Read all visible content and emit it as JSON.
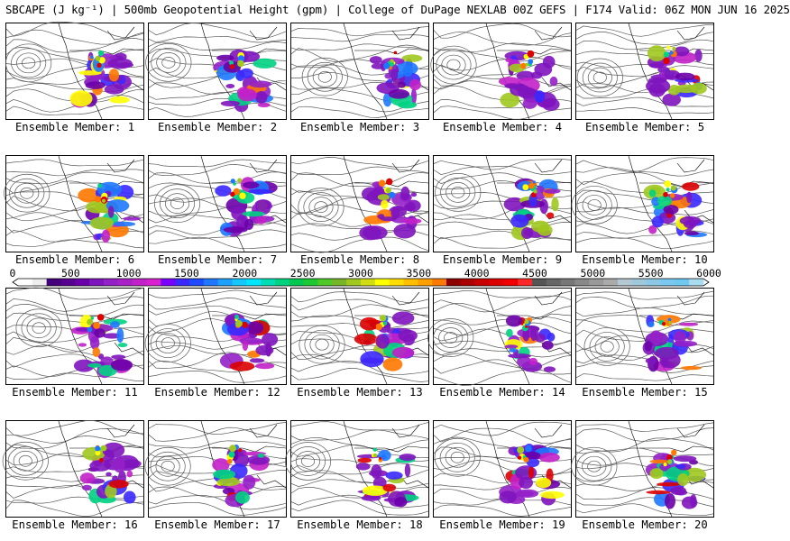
{
  "header": {
    "title": "SBCAPE (J kg⁻¹) | 500mb Geopotential Height (gpm) | College of DuPage NEXLAB 00Z GEFS | F174 Valid: 06Z MON JUN 16 2025"
  },
  "members": [
    {
      "label": "Ensemble Member: 1"
    },
    {
      "label": "Ensemble Member: 2"
    },
    {
      "label": "Ensemble Member: 3"
    },
    {
      "label": "Ensemble Member: 4"
    },
    {
      "label": "Ensemble Member: 5"
    },
    {
      "label": "Ensemble Member: 6"
    },
    {
      "label": "Ensemble Member: 7"
    },
    {
      "label": "Ensemble Member: 8"
    },
    {
      "label": "Ensemble Member: 9"
    },
    {
      "label": "Ensemble Member: 10"
    },
    {
      "label": "Ensemble Member: 11"
    },
    {
      "label": "Ensemble Member: 12"
    },
    {
      "label": "Ensemble Member: 13"
    },
    {
      "label": "Ensemble Member: 14"
    },
    {
      "label": "Ensemble Member: 15"
    },
    {
      "label": "Ensemble Member: 16"
    },
    {
      "label": "Ensemble Member: 17"
    },
    {
      "label": "Ensemble Member: 18"
    },
    {
      "label": "Ensemble Member: 19"
    },
    {
      "label": "Ensemble Member: 20"
    }
  ],
  "colorbar": {
    "ticks": [
      "0",
      "500",
      "1000",
      "1500",
      "2000",
      "2500",
      "3000",
      "3500",
      "4000",
      "4500",
      "5000",
      "5500",
      "6000"
    ],
    "min": 0,
    "max": 6000,
    "colors": [
      "#ffffff",
      "#eeeeee",
      "#44007a",
      "#560090",
      "#6a00a8",
      "#7e14be",
      "#9420c8",
      "#aa20c8",
      "#c220c8",
      "#d820d0",
      "#7a00ff",
      "#3a28ff",
      "#1e4bff",
      "#1e78ff",
      "#1ea0ff",
      "#14c8ff",
      "#00e6ff",
      "#00dcb4",
      "#00d282",
      "#00c850",
      "#1ec832",
      "#50c828",
      "#78b428",
      "#a0c81e",
      "#d2dc14",
      "#ffff00",
      "#ffdc00",
      "#ffbe00",
      "#ffa000",
      "#ff7800",
      "#8c0000",
      "#aa0000",
      "#c80000",
      "#dc0000",
      "#f00000",
      "#ff2828",
      "#555555",
      "#666666",
      "#777777",
      "#888888",
      "#999999",
      "#aaaaaa",
      "#b4c8d2",
      "#a0c8dc",
      "#8cc8e6",
      "#78c8f0",
      "#6ec8f0",
      "#aadcf0"
    ]
  },
  "colors": {
    "border": "#000000",
    "contour": "#555555",
    "coast": "#000000"
  }
}
